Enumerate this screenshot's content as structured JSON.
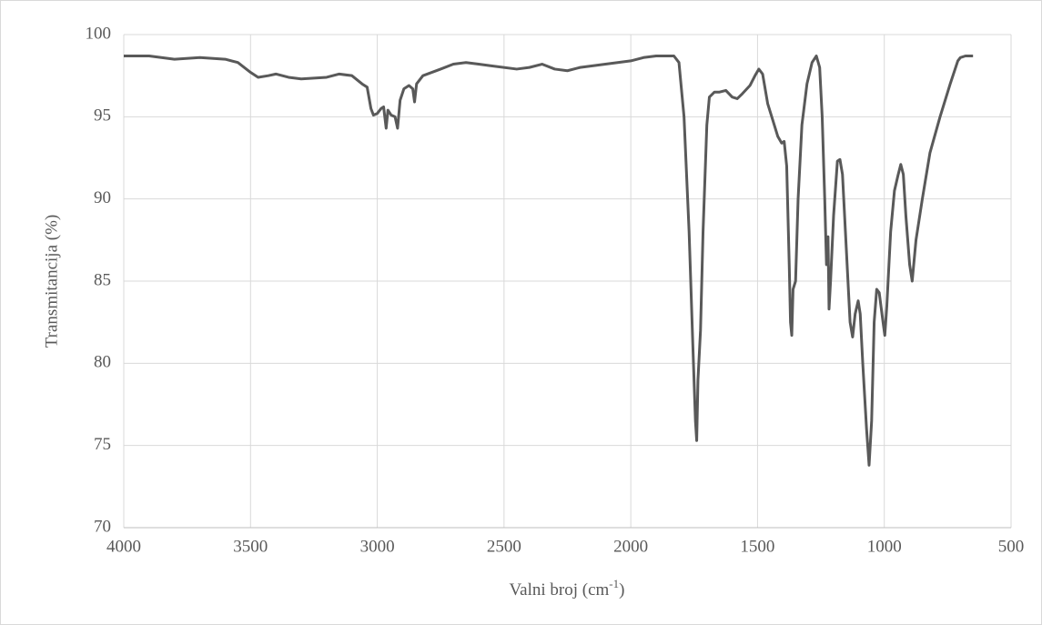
{
  "chart_data": {
    "type": "line",
    "ylabel": "Transmitancija (%)",
    "xlabel": {
      "text": "Valni broj (cm",
      "superscript": "-1",
      "suffix": ")"
    },
    "x": [
      4000,
      3900,
      3800,
      3700,
      3600,
      3550,
      3500,
      3470,
      3430,
      3400,
      3350,
      3300,
      3200,
      3150,
      3100,
      3060,
      3040,
      3025,
      3015,
      3000,
      2985,
      2975,
      2965,
      2958,
      2945,
      2930,
      2920,
      2910,
      2895,
      2875,
      2860,
      2853,
      2845,
      2820,
      2750,
      2700,
      2650,
      2600,
      2550,
      2450,
      2400,
      2350,
      2300,
      2250,
      2200,
      2100,
      2000,
      1950,
      1900,
      1830,
      1810,
      1790,
      1770,
      1755,
      1745,
      1740,
      1735,
      1725,
      1715,
      1700,
      1690,
      1670,
      1650,
      1625,
      1600,
      1580,
      1560,
      1530,
      1510,
      1495,
      1480,
      1460,
      1440,
      1420,
      1405,
      1395,
      1385,
      1375,
      1370,
      1365,
      1360,
      1350,
      1340,
      1325,
      1305,
      1285,
      1268,
      1255,
      1245,
      1235,
      1228,
      1222,
      1218,
      1212,
      1200,
      1185,
      1175,
      1165,
      1150,
      1135,
      1125,
      1115,
      1103,
      1095,
      1085,
      1070,
      1060,
      1050,
      1040,
      1030,
      1020,
      1005,
      998,
      990,
      975,
      960,
      945,
      935,
      925,
      915,
      900,
      890,
      875,
      850,
      820,
      780,
      740,
      710,
      700,
      680,
      650
    ],
    "series": [
      {
        "color": "#595959",
        "values": [
          98.7,
          98.7,
          98.5,
          98.6,
          98.5,
          98.3,
          97.7,
          97.4,
          97.5,
          97.6,
          97.4,
          97.3,
          97.4,
          97.6,
          97.5,
          97.0,
          96.8,
          95.5,
          95.1,
          95.2,
          95.5,
          95.6,
          94.3,
          95.4,
          95.1,
          95.0,
          94.3,
          96.0,
          96.7,
          96.9,
          96.7,
          95.9,
          97.0,
          97.5,
          97.9,
          98.2,
          98.3,
          98.2,
          98.1,
          97.9,
          98.0,
          98.2,
          97.9,
          97.8,
          98.0,
          98.2,
          98.4,
          98.6,
          98.7,
          98.7,
          98.3,
          95.0,
          88.0,
          81.0,
          76.5,
          75.3,
          79.0,
          82.0,
          88.0,
          94.5,
          96.2,
          96.5,
          96.5,
          96.6,
          96.2,
          96.1,
          96.4,
          96.9,
          97.5,
          97.9,
          97.6,
          95.8,
          94.8,
          93.8,
          93.4,
          93.5,
          92.0,
          86.0,
          82.5,
          81.7,
          84.5,
          85.0,
          90.0,
          94.5,
          97.0,
          98.3,
          98.7,
          98.0,
          95.0,
          90.0,
          86.0,
          87.7,
          83.3,
          85.0,
          89.0,
          92.3,
          92.4,
          91.5,
          87.0,
          82.5,
          81.6,
          83.0,
          83.8,
          83.0,
          80.0,
          76.0,
          73.8,
          76.5,
          82.5,
          84.5,
          84.3,
          82.5,
          81.7,
          83.5,
          88.0,
          90.5,
          91.5,
          92.1,
          91.5,
          89.0,
          86.0,
          85.0,
          87.5,
          90.0,
          92.8,
          95.0,
          97.0,
          98.4,
          98.6,
          98.7,
          98.7
        ]
      }
    ],
    "xlim": [
      4000,
      500
    ],
    "xticks": [
      4000,
      3500,
      3000,
      2500,
      2000,
      1500,
      1000,
      500
    ],
    "ylim": [
      70,
      100
    ],
    "yticks": [
      70,
      75,
      80,
      85,
      90,
      95,
      100
    ],
    "grid": true
  }
}
